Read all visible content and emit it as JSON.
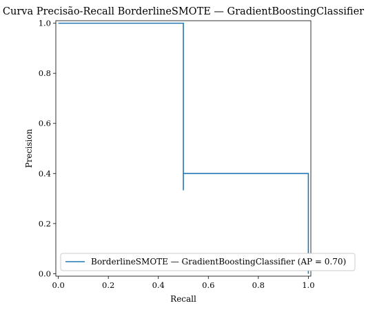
{
  "chart_data": {
    "type": "line",
    "title": "Curva Precisão-Recall BorderlineSMOTE — GradientBoostingClassifier",
    "xlabel": "Recall",
    "ylabel": "Precision",
    "xlim": [
      -0.01,
      1.01
    ],
    "ylim": [
      -0.01,
      1.01
    ],
    "xticks": [
      0.0,
      0.2,
      0.4,
      0.6,
      0.8,
      1.0
    ],
    "xtick_labels": [
      "0.0",
      "0.2",
      "0.4",
      "0.6",
      "0.8",
      "1.0"
    ],
    "yticks": [
      0.0,
      0.2,
      0.4,
      0.6,
      0.8,
      1.0
    ],
    "ytick_labels": [
      "0.0",
      "0.2",
      "0.4",
      "0.6",
      "0.8",
      "1.0"
    ],
    "grid": false,
    "legend_position": "lower-right",
    "line_style": "steps-post",
    "series": [
      {
        "name": "BorderlineSMOTE — GradientBoostingClassifier (AP = 0.70)",
        "color": "#1f77b4",
        "x": [
          0.0,
          0.5,
          0.5,
          0.5,
          1.0,
          1.0
        ],
        "y": [
          1.0,
          1.0,
          0.333,
          0.4,
          0.4,
          0.0
        ]
      }
    ]
  }
}
